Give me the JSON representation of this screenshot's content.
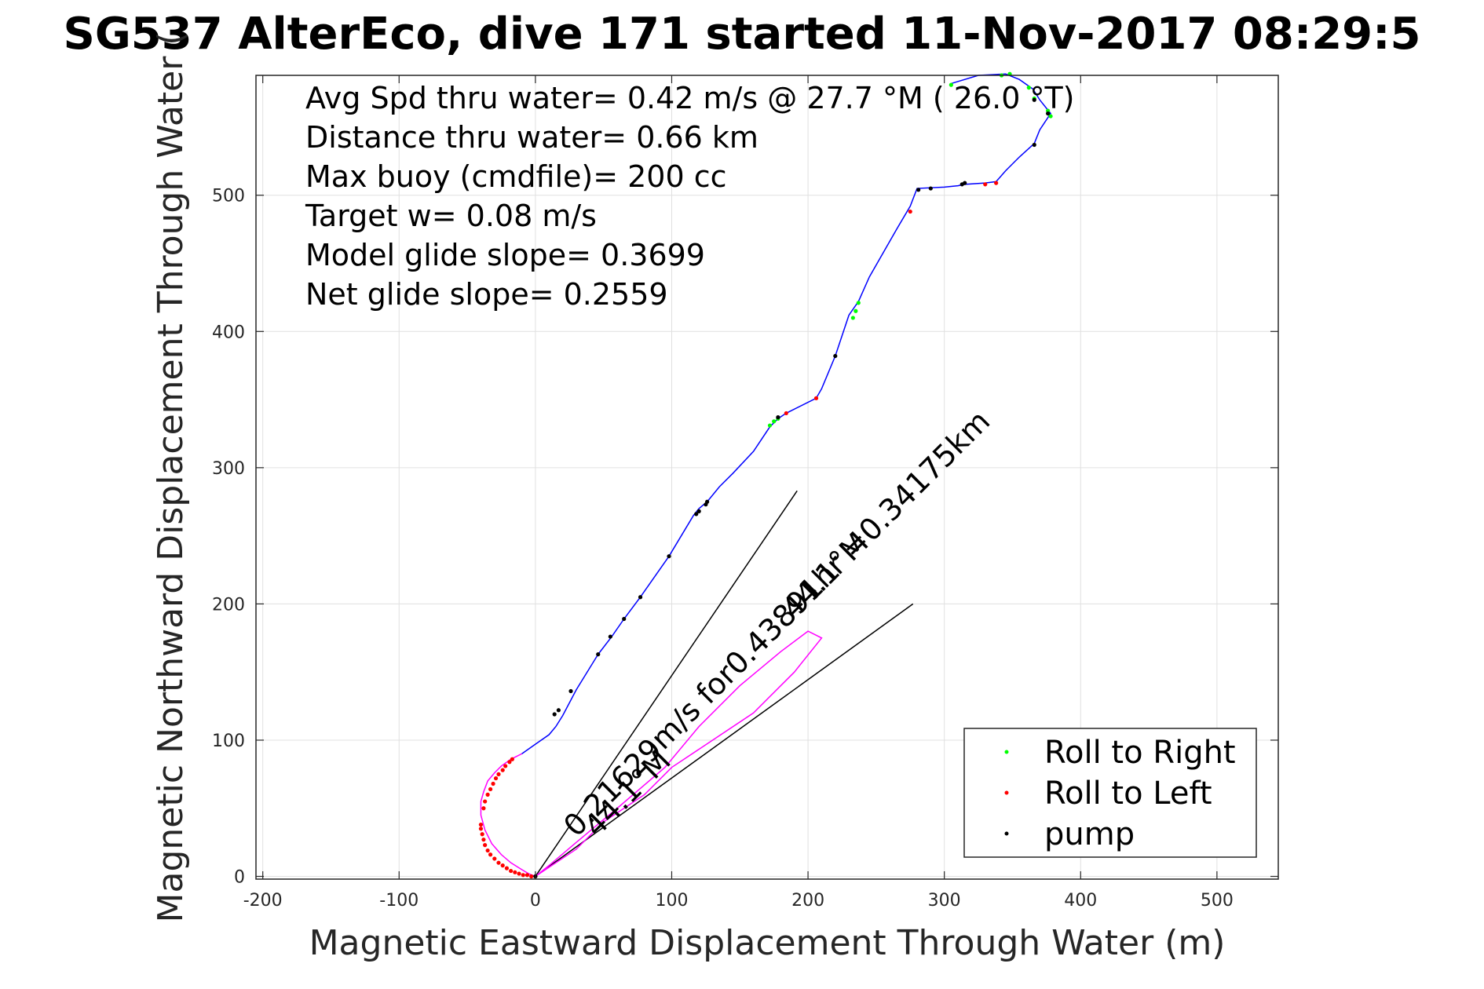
{
  "chart_data": {
    "type": "line",
    "title": "SG537 AlterEco, dive 171 started 11-Nov-2017 08:29:5",
    "xlabel": "Magnetic Eastward Displacement Through Water (m)",
    "ylabel": "Magnetic Northward Displacement Through Water (",
    "xlim": [
      -205,
      545
    ],
    "ylim": [
      -2,
      588
    ],
    "xticks": [
      -200,
      -100,
      0,
      100,
      200,
      300,
      400,
      500
    ],
    "xtick_labels": [
      "-200",
      "-100",
      "0",
      "100",
      "200",
      "300",
      "400",
      "500"
    ],
    "yticks": [
      0,
      100,
      200,
      300,
      400,
      500
    ],
    "ytick_labels": [
      "0",
      "100",
      "200",
      "300",
      "400",
      "500"
    ],
    "grid": true,
    "legend_position": "bottom-right",
    "info_lines": [
      "Avg Spd thru water=  0.42 m/s @  27.7 °M ( 26.0 °T)",
      "Distance thru water=  0.66 km",
      "Max buoy (cmdfile)= 200 cc",
      "Target w= 0.08 m/s",
      "Model glide slope= 0.3699",
      "Net glide slope= 0.2559"
    ],
    "track": {
      "color": "#0000ff",
      "x": [
        0,
        30,
        50,
        80,
        100,
        130,
        160,
        190,
        210,
        200,
        180,
        150,
        120,
        95,
        60,
        30,
        10,
        0,
        -5,
        -10,
        -18,
        -25,
        -32,
        -37,
        -40,
        -40,
        -38,
        -35,
        -30,
        -25,
        -18,
        -10,
        0,
        10,
        15,
        20,
        30,
        46,
        56,
        65,
        77,
        98,
        116,
        120,
        126,
        135,
        145,
        160,
        172,
        178,
        184,
        206,
        210,
        220,
        230,
        237,
        245,
        265,
        275,
        280,
        300,
        310,
        315,
        330,
        338,
        345,
        355,
        366,
        370,
        378,
        370,
        365,
        355,
        345,
        325,
        305
      ],
      "y": [
        0,
        20,
        40,
        60,
        80,
        100,
        120,
        150,
        175,
        180,
        165,
        140,
        110,
        80,
        50,
        25,
        8,
        0,
        2,
        5,
        10,
        16,
        24,
        34,
        45,
        55,
        62,
        70,
        76,
        81,
        86,
        90,
        97,
        104,
        110,
        118,
        137,
        163,
        176,
        189,
        205,
        235,
        265,
        270,
        275,
        286,
        296,
        312,
        330,
        336,
        340,
        351,
        358,
        382,
        412,
        422,
        440,
        475,
        492,
        505,
        506,
        507,
        508,
        509,
        510,
        518,
        528,
        538,
        548,
        560,
        570,
        578,
        585,
        589,
        588,
        582
      ]
    },
    "track_segments": [
      {
        "from": 0,
        "to": 17,
        "color": "#ff00ff"
      },
      {
        "from": 17,
        "to": 31,
        "color": "#ff00ff"
      },
      {
        "from": 31,
        "to": 75,
        "color": "#0000ff"
      }
    ],
    "series": [
      {
        "name": "Roll to Right",
        "color": "#00ff00",
        "x": [
          172,
          175,
          178,
          233,
          235,
          237,
          305,
          342,
          348,
          362,
          366,
          376,
          378
        ],
        "y": [
          331,
          334,
          336,
          410,
          415,
          421,
          581,
          588,
          589,
          579,
          571,
          562,
          558
        ]
      },
      {
        "name": "Roll to Left",
        "color": "#ff0000",
        "x": [
          -40,
          -40,
          -39,
          -38,
          -37,
          -35,
          -33,
          -30,
          -27,
          -24,
          -21,
          -18,
          -15,
          -12,
          -9,
          -6,
          -3,
          0,
          -38,
          -37,
          -35,
          -33,
          -31,
          -29,
          -27,
          -24,
          -22,
          -19,
          -17,
          184,
          206,
          275,
          330,
          338
        ],
        "y": [
          38,
          35,
          31,
          27,
          23,
          19,
          16,
          13,
          10,
          8,
          6,
          4,
          3,
          2,
          1,
          1,
          0,
          0,
          50,
          55,
          60,
          64,
          68,
          72,
          75,
          78,
          81,
          84,
          86,
          340,
          351,
          488,
          508,
          509
        ]
      },
      {
        "name": "pump",
        "color": "#000000",
        "x": [
          0,
          14,
          17,
          26,
          46,
          55,
          65,
          77,
          98,
          118,
          120,
          125,
          126,
          178,
          220,
          281,
          290,
          313,
          315,
          366,
          376,
          366
        ],
        "y": [
          0,
          119,
          122,
          136,
          163,
          176,
          189,
          205,
          235,
          266,
          268,
          273,
          275,
          337,
          382,
          504,
          505,
          508,
          509,
          537,
          560,
          570
        ]
      }
    ],
    "guide_lines": [
      {
        "x": [
          0,
          192
        ],
        "y": [
          0,
          283
        ]
      },
      {
        "x": [
          0,
          277
        ],
        "y": [
          0,
          200
        ]
      }
    ],
    "annotations": [
      {
        "text": "0.21629m/s for0.43891hr =0.34175km",
        "x": 30,
        "y": 28,
        "angle": 45
      },
      {
        "text": "44.1°M",
        "x": 45,
        "y": 28,
        "angle": 45
      },
      {
        "text": "44.1°M",
        "x": 190,
        "y": 188,
        "angle": 45
      }
    ]
  }
}
